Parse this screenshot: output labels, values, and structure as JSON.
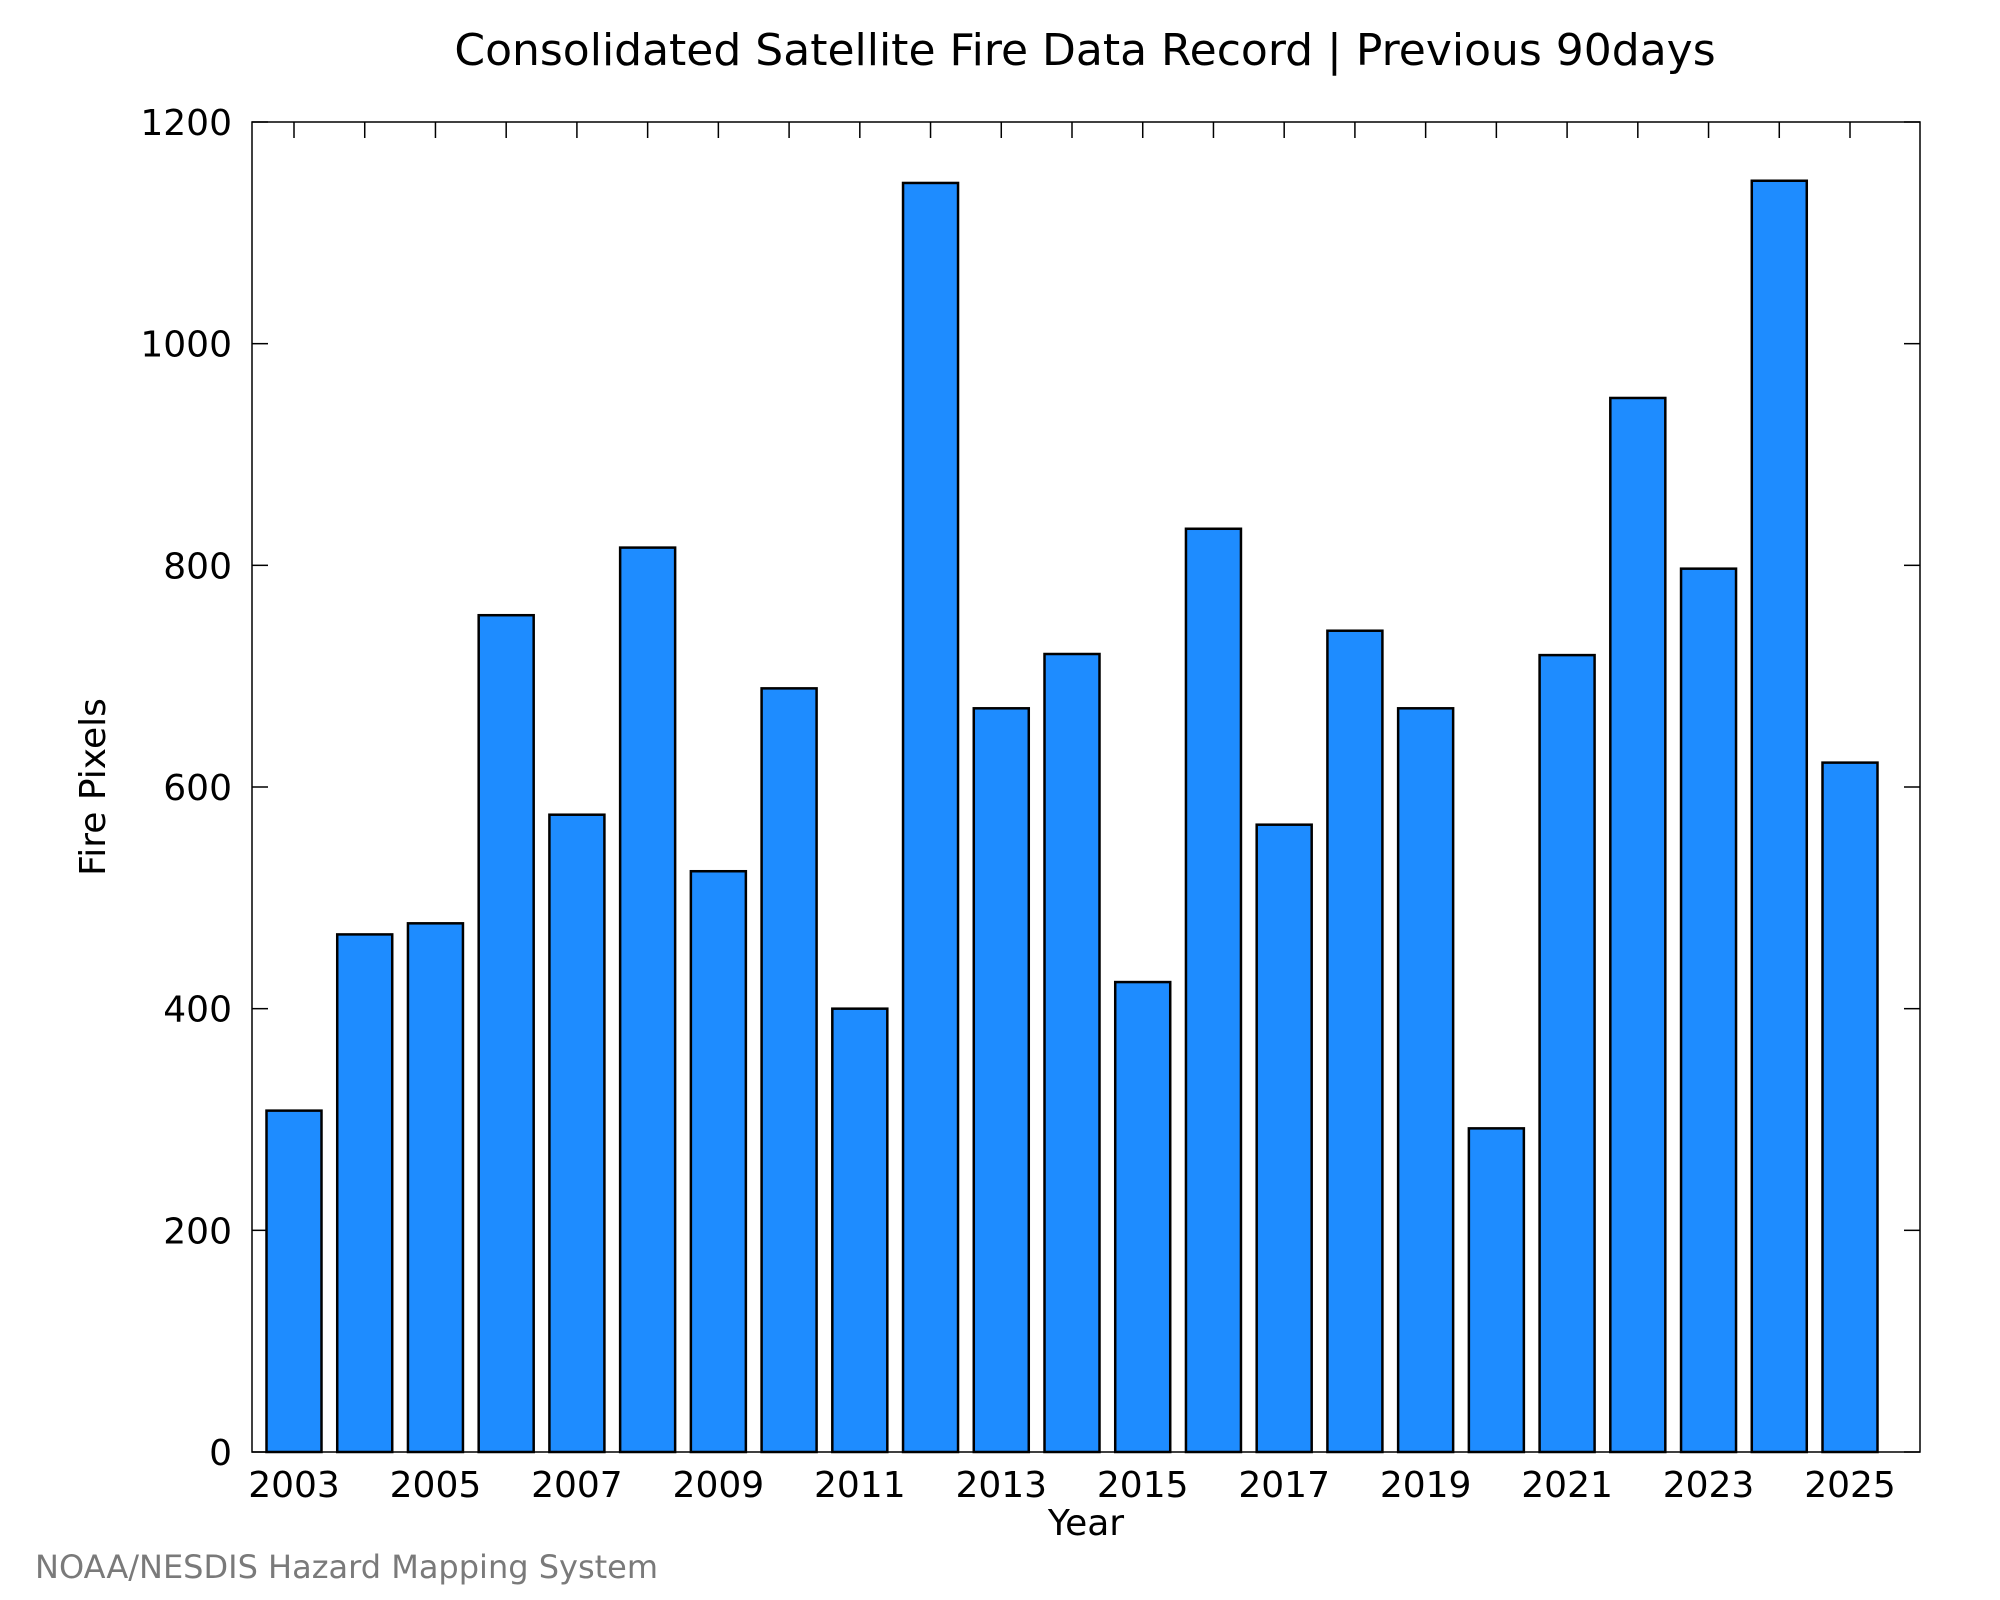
{
  "chart_data": {
    "type": "bar",
    "title": "Consolidated Satellite Fire Data Record | Previous 90days",
    "xlabel": "Year",
    "ylabel": "Fire Pixels",
    "categories": [
      "2003",
      "2004",
      "2005",
      "2006",
      "2007",
      "2008",
      "2009",
      "2010",
      "2011",
      "2012",
      "2013",
      "2014",
      "2015",
      "2016",
      "2017",
      "2018",
      "2019",
      "2020",
      "2021",
      "2022",
      "2023",
      "2024",
      "2025"
    ],
    "values": [
      308,
      467,
      477,
      755,
      575,
      816,
      524,
      689,
      400,
      1145,
      671,
      720,
      424,
      833,
      566,
      741,
      671,
      292,
      719,
      951,
      797,
      1147,
      622
    ],
    "x_tick_labels": [
      "2003",
      "2005",
      "2007",
      "2009",
      "2011",
      "2013",
      "2015",
      "2017",
      "2019",
      "2021",
      "2023",
      "2025"
    ],
    "y_ticks": [
      0,
      200,
      400,
      600,
      800,
      1000,
      1200
    ],
    "ylim": [
      0,
      1200
    ],
    "grid": false,
    "bar_color": "#1e8cff",
    "bar_edge_color": "#000000"
  },
  "footer": "NOAA/NESDIS Hazard Mapping System"
}
